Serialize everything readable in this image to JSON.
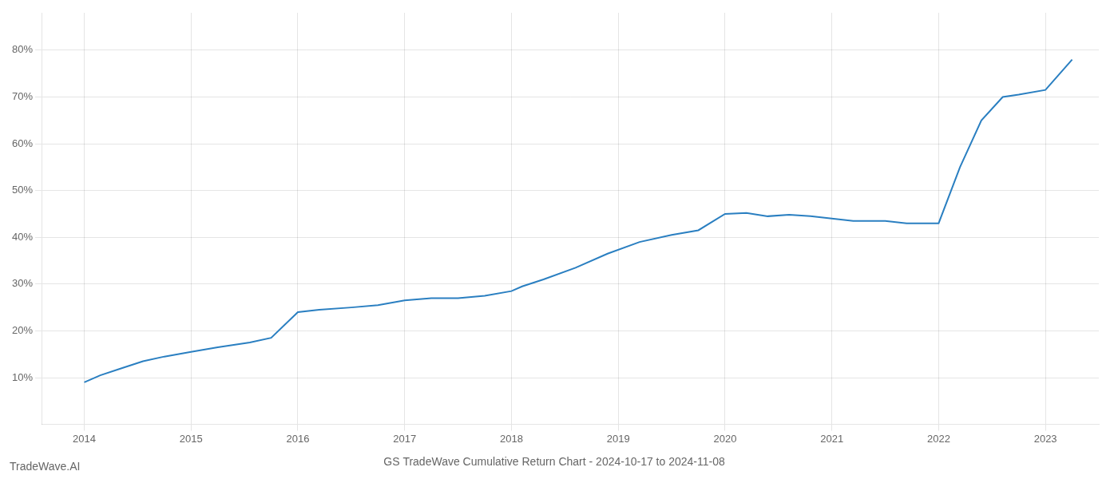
{
  "chart_data": {
    "type": "line",
    "title": "GS TradeWave Cumulative Return Chart - 2024-10-17 to 2024-11-08",
    "annotations": [
      "TradeWave.AI"
    ],
    "x": [
      2014.0,
      2014.15,
      2014.35,
      2014.55,
      2014.75,
      2015.0,
      2015.25,
      2015.55,
      2015.75,
      2016.0,
      2016.2,
      2016.5,
      2016.75,
      2017.0,
      2017.25,
      2017.5,
      2017.75,
      2018.0,
      2018.1,
      2018.3,
      2018.6,
      2018.9,
      2019.2,
      2019.5,
      2019.75,
      2020.0,
      2020.2,
      2020.4,
      2020.6,
      2020.8,
      2021.0,
      2021.2,
      2021.5,
      2021.7,
      2021.85,
      2022.0,
      2022.2,
      2022.4,
      2022.6,
      2022.75,
      2023.0,
      2023.25
    ],
    "values": [
      9.0,
      10.5,
      12.0,
      13.5,
      14.5,
      15.5,
      16.5,
      17.5,
      18.5,
      24.0,
      24.5,
      25.0,
      25.5,
      26.5,
      27.0,
      27.0,
      27.5,
      28.5,
      29.5,
      31.0,
      33.5,
      36.5,
      39.0,
      40.5,
      41.5,
      45.0,
      45.2,
      44.5,
      44.8,
      44.5,
      44.0,
      43.5,
      43.5,
      43.0,
      43.0,
      43.0,
      55.0,
      65.0,
      70.0,
      70.5,
      71.5,
      78.0
    ],
    "color": "#2a7fc1",
    "xlim": [
      2013.6,
      2023.5
    ],
    "xticks": [
      2014,
      2015,
      2016,
      2017,
      2018,
      2019,
      2020,
      2021,
      2022,
      2023
    ],
    "ylim": [
      0,
      88
    ],
    "yticks": [
      {
        "value": 10,
        "label": "10%"
      },
      {
        "value": 20,
        "label": "20%"
      },
      {
        "value": 30,
        "label": "30%"
      },
      {
        "value": 40,
        "label": "40%"
      },
      {
        "value": 50,
        "label": "50%"
      },
      {
        "value": 60,
        "label": "60%"
      },
      {
        "value": 70,
        "label": "70%"
      },
      {
        "value": 80,
        "label": "80%"
      }
    ],
    "grid": true
  }
}
